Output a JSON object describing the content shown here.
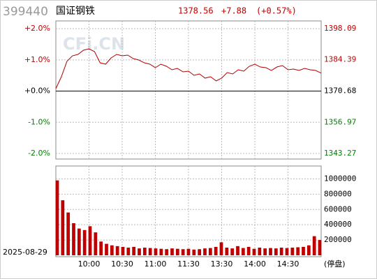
{
  "header": {
    "code": "399440",
    "name": "国证钢铁",
    "price": "1378.56",
    "change": "+7.88",
    "change_pct": "(+0.57%)"
  },
  "chart_data": [
    {
      "type": "line",
      "watermark": "CFi.CN",
      "ylim": [
        -2.18,
        2.25
      ],
      "yticks": [
        {
          "value": 2,
          "label": "+2.0%"
        },
        {
          "value": 1,
          "label": "+1.0%"
        },
        {
          "value": 0,
          "label": "+0.0%"
        },
        {
          "value": -1,
          "label": "-1.0%"
        },
        {
          "value": -2,
          "label": "-2.0%"
        }
      ],
      "y2lim": [
        1340.82,
        1401.46
      ],
      "y2ticks": [
        1398.09,
        1384.39,
        1370.68,
        1356.97,
        1343.27
      ],
      "grid": true,
      "series": [
        {
          "name": null,
          "color": "#b00000",
          "axis": "y2",
          "values": [
            1371.75,
            1376.96,
            1383.69,
            1386.14,
            1386.76,
            1388.6,
            1389.21,
            1387.98,
            1383.08,
            1382.47,
            1385.23,
            1386.76,
            1386.14,
            1386.45,
            1384.92,
            1384.31,
            1383.08,
            1382.47,
            1380.94,
            1382.47,
            1381.55,
            1380.02,
            1380.63,
            1379.1,
            1379.41,
            1377.57,
            1378.18,
            1376.34,
            1376.96,
            1375.12,
            1376.34,
            1378.79,
            1378.18,
            1380.02,
            1379.41,
            1381.55,
            1382.47,
            1381.24,
            1380.94,
            1379.71,
            1381.24,
            1381.86,
            1380.02,
            1380.33,
            1379.71,
            1380.63,
            1380.02,
            1379.71,
            1378.56
          ]
        }
      ]
    },
    {
      "type": "bar",
      "date": "2025-08-29",
      "status": "(停盘)",
      "time_labels": [
        "10:00",
        "10:30",
        "11:00",
        "11:30",
        "13:30",
        "14:00",
        "14:30"
      ],
      "ylim": [
        0,
        1150000
      ],
      "yticks": [
        1000000,
        800000,
        600000,
        400000,
        200000
      ],
      "grid": true,
      "color": "#c00000",
      "values": [
        980000,
        720000,
        560000,
        420000,
        350000,
        330000,
        380000,
        300000,
        180000,
        150000,
        130000,
        120000,
        110000,
        100000,
        110000,
        90000,
        100000,
        95000,
        90000,
        85000,
        80000,
        90000,
        85000,
        80000,
        85000,
        75000,
        80000,
        90000,
        95000,
        110000,
        170000,
        100000,
        90000,
        120000,
        95000,
        110000,
        85000,
        100000,
        90000,
        95000,
        90000,
        100000,
        95000,
        100000,
        105000,
        110000,
        130000,
        250000,
        200000
      ]
    }
  ]
}
